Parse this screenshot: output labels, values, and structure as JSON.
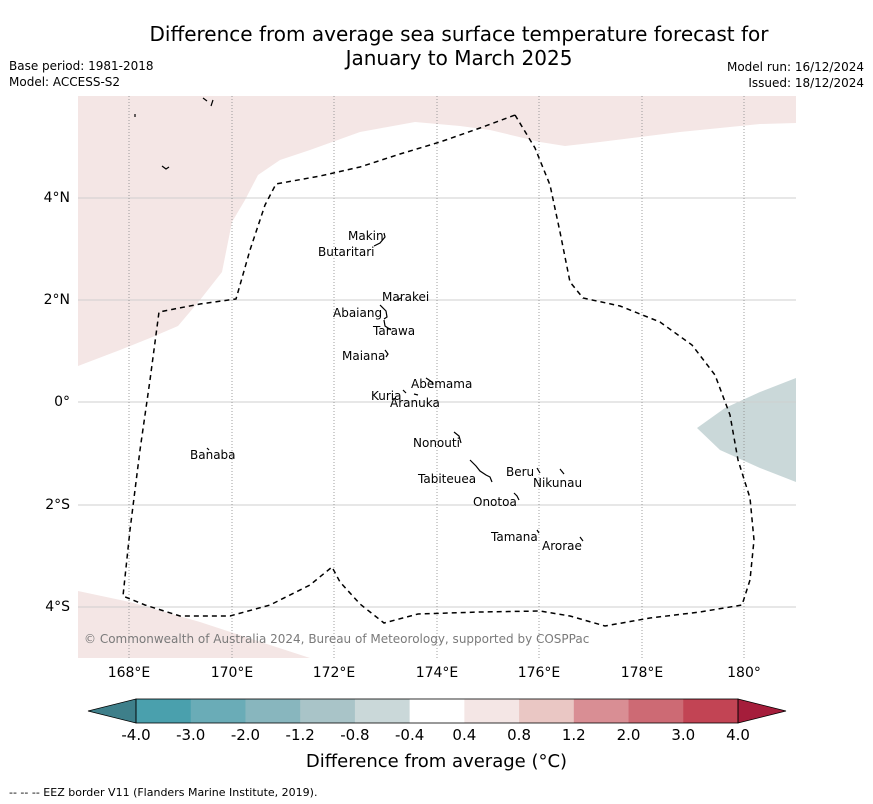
{
  "title_line1": "Difference from average sea surface temperature forecast for",
  "title_line2": "January to March 2025",
  "meta_left": {
    "base_period": "Base period: 1981-2018",
    "model": "Model: ACCESS-S2"
  },
  "meta_right": {
    "model_run": "Model run: 16/12/2024",
    "issued": "Issued: 18/12/2024"
  },
  "lat_labels": [
    "4°N",
    "2°N",
    "0°",
    "2°S",
    "4°S"
  ],
  "lon_labels": [
    "168°E",
    "170°E",
    "172°E",
    "174°E",
    "176°E",
    "178°E",
    "180°"
  ],
  "islands": {
    "makin": "Makin",
    "butaritari": "Butaritari",
    "marakei": "Marakei",
    "abaiang": "Abaiang",
    "tarawa": "Tarawa",
    "maiana": "Maiana",
    "abemama": "Abemama",
    "kuria": "Kuria",
    "aranuka": "Aranuka",
    "nonouti": "Nonouti",
    "banaba": "Banaba",
    "beru": "Beru",
    "nikunau": "Nikunau",
    "tabiteuea": "Tabiteuea",
    "onotoa": "Onotoa",
    "tamana": "Tamana",
    "arorae": "Arorae"
  },
  "credit": "© Commonwealth of Australia 2024, Bureau of Meteorology, supported by COSPPac",
  "colorbar": {
    "ticks": [
      "-4.0",
      "-3.0",
      "-2.0",
      "-1.2",
      "-0.8",
      "-0.4",
      "0.4",
      "0.8",
      "1.2",
      "2.0",
      "3.0",
      "4.0"
    ],
    "colors": [
      "#4aa0ad",
      "#6aacb7",
      "#88b6be",
      "#a9c4c8",
      "#cad8d9",
      "#ffffff",
      "#f4e6e5",
      "#eac7c4",
      "#d98e94",
      "#cd6a74",
      "#c24454"
    ],
    "under_color": "#3e7f8a",
    "over_color": "#a51d3b",
    "label": "Difference from average (°C)"
  },
  "map_colors": {
    "warm_area": "#f4e6e5",
    "cool_area": "#cad8d9"
  },
  "eez_note": "--  --  -- EEZ border V11 (Flanders Marine Institute, 2019)."
}
